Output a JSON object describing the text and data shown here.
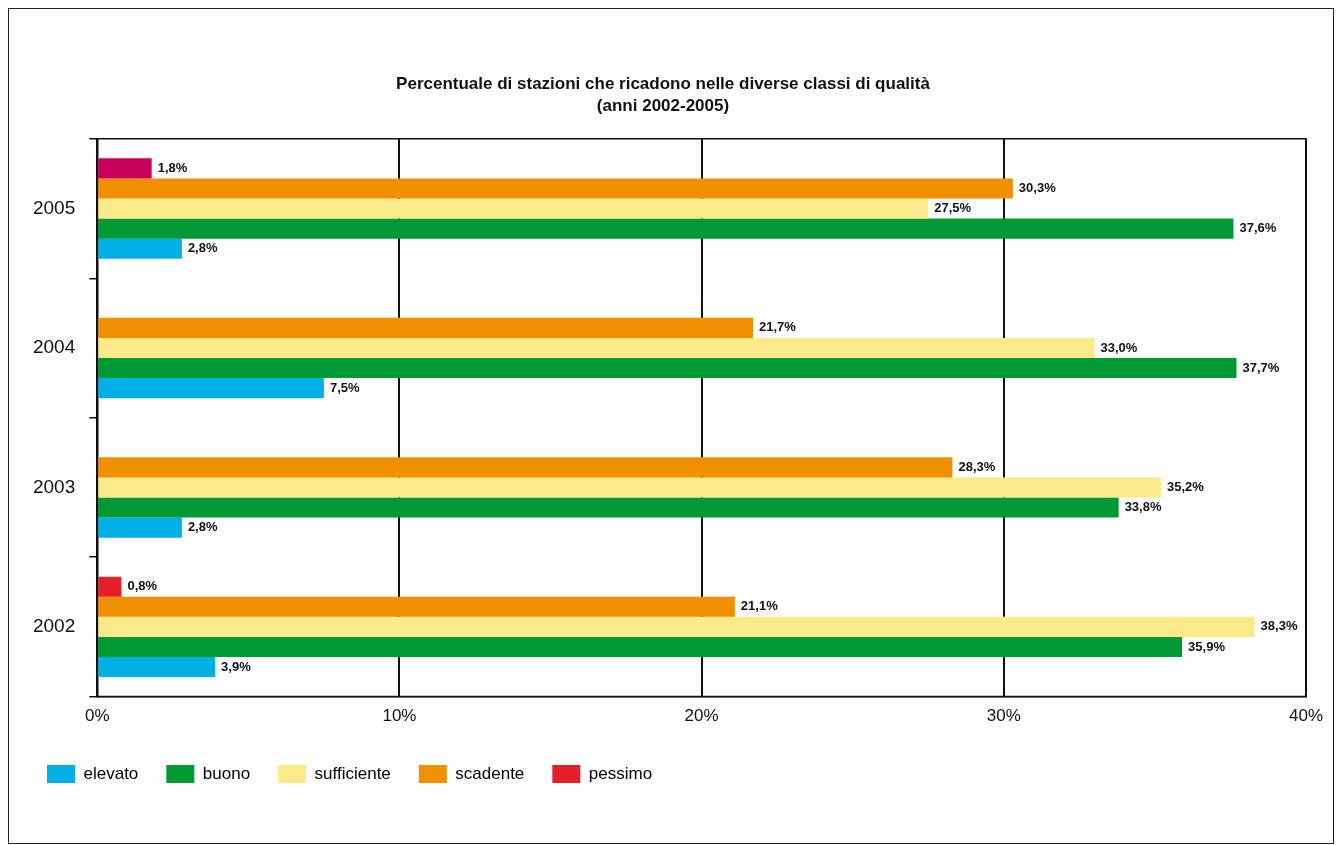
{
  "chart_data": {
    "type": "bar",
    "orientation": "horizontal",
    "title": "Percentuale di stazioni che ricadono nelle diverse classi di qualità",
    "subtitle": "(anni 2002-2005)",
    "categories": [
      "2005",
      "2004",
      "2003",
      "2002"
    ],
    "series": [
      {
        "name": "elevato",
        "color": "#00b0e6",
        "values": [
          2.8,
          7.5,
          2.8,
          3.9
        ],
        "value_labels": [
          "2,8%",
          "7,5%",
          "2,8%",
          "3,9%"
        ]
      },
      {
        "name": "buono",
        "color": "#009933",
        "values": [
          37.6,
          37.7,
          33.8,
          35.9
        ],
        "value_labels": [
          "37,6%",
          "37,7%",
          "33,8%",
          "35,9%"
        ]
      },
      {
        "name": "sufficiente",
        "color": "#fbe98a",
        "values": [
          27.5,
          33.0,
          35.2,
          38.3
        ],
        "value_labels": [
          "27,5%",
          "33,0%",
          "35,2%",
          "38,3%"
        ]
      },
      {
        "name": "scadente",
        "color": "#f09000",
        "values": [
          30.3,
          21.7,
          28.3,
          21.1
        ],
        "value_labels": [
          "30,3%",
          "21,7%",
          "28,3%",
          "21,1%"
        ]
      },
      {
        "name": "pessimo",
        "color": "#e3202a",
        "colors": [
          "#c8005a",
          "#e3202a",
          "#e3202a",
          "#e3202a"
        ],
        "values": [
          1.8,
          null,
          null,
          0.8
        ],
        "value_labels": [
          "1,8%",
          null,
          null,
          "0,8%"
        ]
      }
    ],
    "xlim": [
      0,
      40
    ],
    "xticks": [
      {
        "value": 0,
        "label": "0%"
      },
      {
        "value": 10,
        "label": "10%"
      },
      {
        "value": 20,
        "label": "20%"
      },
      {
        "value": 30,
        "label": "30%"
      },
      {
        "value": 40,
        "label": "40%"
      }
    ],
    "grid": "x",
    "legend": "bottom left"
  }
}
